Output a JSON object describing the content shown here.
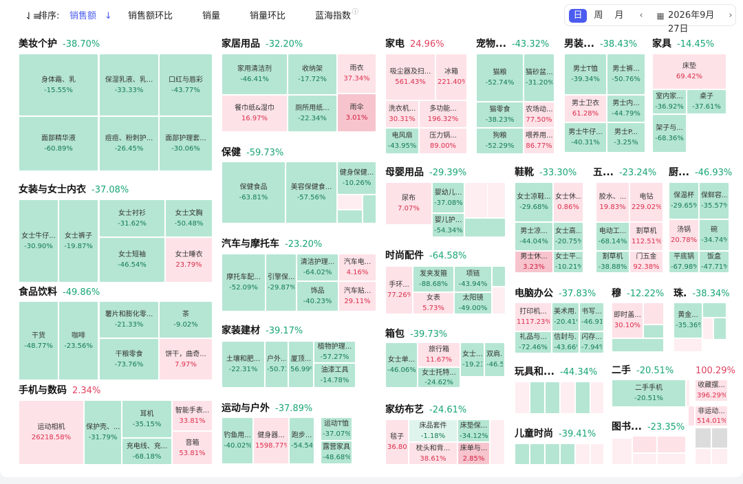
{
  "toolbar": {
    "sort_label": "排序:",
    "metrics": [
      "销售额",
      "销售额环比",
      "销量",
      "销量环比",
      "蓝海指数"
    ]
  },
  "date": {
    "views": [
      "日",
      "周",
      "月"
    ],
    "selected": "2026年9月27日"
  },
  "colors": {
    "accent": "#4b5cf0",
    "green_cell": "#b5e6d3",
    "pink_cell": "#fde2e7",
    "red_text": "#e0405e",
    "green_text": "#17a574"
  },
  "sections": [
    {
      "name": "美妆个护",
      "change": "-38.70%",
      "cells": [
        {
          "name": "身体霜、乳",
          "value": "-15.55%"
        },
        {
          "name": "保湿乳液、乳...",
          "value": "-33.33%"
        },
        {
          "name": "口红与唇彩",
          "value": "-43.77%"
        },
        {
          "name": "面部精华液",
          "value": "-60.89%"
        },
        {
          "name": "痘痘、粉刺护...",
          "value": "-26.45%"
        },
        {
          "name": "面部护理套...",
          "value": "-30.06%"
        }
      ]
    },
    {
      "name": "女装与女士内衣",
      "change": "-37.08%",
      "cells": [
        {
          "name": "女士牛仔...",
          "value": "-30.90%"
        },
        {
          "name": "女士裤子",
          "value": "-19.87%"
        },
        {
          "name": "女士衬衫",
          "value": "-31.62%"
        },
        {
          "name": "女士文胸",
          "value": "-50.48%"
        },
        {
          "name": "女士短袖",
          "value": "-46.54%"
        },
        {
          "name": "女士睡衣",
          "value": "23.79%"
        }
      ]
    },
    {
      "name": "食品饮料",
      "change": "-49.86%",
      "cells": [
        {
          "name": "干货",
          "value": "-48.77%"
        },
        {
          "name": "咖啡",
          "value": "-23.56%"
        },
        {
          "name": "薯片和膨化零...",
          "value": "-21.33%"
        },
        {
          "name": "茶",
          "value": "-9.02%"
        },
        {
          "name": "干粮零食",
          "value": "-73.76%"
        },
        {
          "name": "饼干，曲奇...",
          "value": "7.97%"
        }
      ]
    },
    {
      "name": "手机与数码",
      "change": "2.34%",
      "cells": [
        {
          "name": "运动相机",
          "value": "26218.58%"
        },
        {
          "name": "保护壳、...",
          "value": "-31.79%"
        },
        {
          "name": "耳机",
          "value": "-35.15%"
        },
        {
          "name": "智能手表...",
          "value": "33.81%"
        },
        {
          "name": "充电线、充...",
          "value": "-68.18%"
        },
        {
          "name": "音箱",
          "value": "53.81%"
        }
      ]
    },
    {
      "name": "家居用品",
      "change": "-32.20%",
      "cells": [
        {
          "name": "家用清洁剂",
          "value": "-46.41%"
        },
        {
          "name": "收纳架",
          "value": "-17.72%"
        },
        {
          "name": "雨衣",
          "value": "37.34%"
        },
        {
          "name": "餐巾纸&湿巾",
          "value": "16.97%"
        },
        {
          "name": "厕所用纸...",
          "value": "-22.34%"
        },
        {
          "name": "雨伞",
          "value": "3.01%"
        }
      ]
    },
    {
      "name": "保健",
      "change": "-59.73%",
      "cells": [
        {
          "name": "保健食品",
          "value": "-63.81%"
        },
        {
          "name": "美容保健食...",
          "value": "-57.56%"
        },
        {
          "name": "健身保健...",
          "value": "-10.26%"
        }
      ]
    },
    {
      "name": "汽车与摩托车",
      "change": "-23.20%",
      "cells": [
        {
          "name": "摩托车配...",
          "value": "-52.09%"
        },
        {
          "name": "引擎保...",
          "value": "-29.87%"
        },
        {
          "name": "清洁护理...",
          "value": "-64.02%"
        },
        {
          "name": "汽车电...",
          "value": "4.16%"
        },
        {
          "name": "饰品",
          "value": "-40.23%"
        },
        {
          "name": "汽车贴...",
          "value": "29.11%"
        }
      ]
    },
    {
      "name": "家装建材",
      "change": "-39.17%",
      "cells": [
        {
          "name": "土壤和肥...",
          "value": "-22.31%"
        },
        {
          "name": "户外...",
          "value": "-50.73%"
        },
        {
          "name": "厦顶...",
          "value": "56.99%"
        },
        {
          "name": "植物护理...",
          "value": "-57.27%"
        },
        {
          "name": "油漆工具",
          "value": "-14.78%"
        }
      ]
    },
    {
      "name": "运动与户外",
      "change": "-37.89%",
      "cells": [
        {
          "name": "钓鱼用...",
          "value": "-40.02%"
        },
        {
          "name": "健身器...",
          "value": "1598.77%"
        },
        {
          "name": "跑步...",
          "value": "-54.54%"
        },
        {
          "name": "运动T恤",
          "value": "-37.07%"
        },
        {
          "name": "露营家具",
          "value": "-48.68%"
        }
      ]
    },
    {
      "name": "家电",
      "change": "24.96%",
      "cells": [
        {
          "name": "吸尘器及扫...",
          "value": "561.43%"
        },
        {
          "name": "冰箱",
          "value": "221.40%"
        },
        {
          "name": "洗衣机...",
          "value": "30.31%"
        },
        {
          "name": "多功能...",
          "value": "196.32%"
        },
        {
          "name": "电风扇",
          "value": "-43.95%"
        },
        {
          "name": "压力锅...",
          "value": "89.00%"
        }
      ]
    },
    {
      "name": "宠物...",
      "change": "-43.32%",
      "cells": [
        {
          "name": "猫粮",
          "value": "-52.74%"
        },
        {
          "name": "猫砂盆...",
          "value": "-31.20%"
        },
        {
          "name": "猫零食",
          "value": "-38.23%"
        },
        {
          "name": "农场动...",
          "value": "77.50%"
        },
        {
          "name": "狗粮",
          "value": "-52.29%"
        },
        {
          "name": "喂养用...",
          "value": "86.77%"
        }
      ]
    },
    {
      "name": "男装...",
      "change": "-38.43%",
      "cells": [
        {
          "name": "男士T恤",
          "value": "-39.34%"
        },
        {
          "name": "男士裤...",
          "value": "-50.76%"
        },
        {
          "name": "男士卫衣",
          "value": "61.28%"
        },
        {
          "name": "男士内...",
          "value": "-44.79%"
        },
        {
          "name": "男士牛仔...",
          "value": "-40.31%"
        },
        {
          "name": "男士P...",
          "value": "-3.25%"
        }
      ]
    },
    {
      "name": "家具",
      "change": "-14.45%",
      "cells": [
        {
          "name": "床垫",
          "value": "69.42%"
        },
        {
          "name": "室内家...",
          "value": "-36.92%"
        },
        {
          "name": "桌子",
          "value": "-37.61%"
        },
        {
          "name": "架子与...",
          "value": "-68.36%"
        }
      ]
    },
    {
      "name": "母婴用品",
      "change": "-29.39%",
      "cells": [
        {
          "name": "尿布",
          "value": "7.07%"
        },
        {
          "name": "婴幼儿...",
          "value": "-37.08%"
        },
        {
          "name": "婴儿护...",
          "value": "-54.34%"
        }
      ]
    },
    {
      "name": "时尚配件",
      "change": "-64.58%",
      "cells": [
        {
          "name": "手环...",
          "value": "77.26%"
        },
        {
          "name": "发夹发箍",
          "value": "-88.68%"
        },
        {
          "name": "项链",
          "value": "-43.94%"
        },
        {
          "name": "女表",
          "value": "5.73%"
        },
        {
          "name": "太阳镜",
          "value": "-49.00%"
        }
      ]
    },
    {
      "name": "箱包",
      "change": "-39.73%",
      "cells": [
        {
          "name": "女士单...",
          "value": "-46.06%"
        },
        {
          "name": "旅行箱",
          "value": "11.67%"
        },
        {
          "name": "女士...",
          "value": "-19.23%"
        },
        {
          "name": "双肩...",
          "value": "-46.58%"
        },
        {
          "name": "女士托特...",
          "value": "-24.62%"
        }
      ]
    },
    {
      "name": "家纺布艺",
      "change": "-24.61%",
      "cells": [
        {
          "name": "毯子",
          "value": "36.80%"
        },
        {
          "name": "床品套件",
          "value": "-1.18%"
        },
        {
          "name": "床垫保...",
          "value": "-34.12%"
        },
        {
          "name": "枕头和背...",
          "value": "38.61%"
        },
        {
          "name": "床单与...",
          "value": "2.85%"
        }
      ]
    },
    {
      "name": "鞋靴",
      "change": "-33.30%",
      "cells": [
        {
          "name": "女士凉鞋...",
          "value": "-29.68%"
        },
        {
          "name": "女士休...",
          "value": "0.86%"
        },
        {
          "name": "男士凉...",
          "value": "-44.04%"
        },
        {
          "name": "女士高...",
          "value": "-20.75%"
        },
        {
          "name": "男士休...",
          "value": "3.23%"
        },
        {
          "name": "女士平...",
          "value": "-10.21%"
        }
      ]
    },
    {
      "name": "五...",
      "change": "-23.24%",
      "cells": [
        {
          "name": "胶水、...",
          "value": "19.83%"
        },
        {
          "name": "电钻",
          "value": "229.02%"
        },
        {
          "name": "电动工...",
          "value": "-68.14%"
        },
        {
          "name": "割草机",
          "value": "112.51%"
        },
        {
          "name": "割草机",
          "value": "-38.88%"
        },
        {
          "name": "门五金",
          "value": "92.38%"
        }
      ]
    },
    {
      "name": "厨...",
      "change": "-46.93%",
      "cells": [
        {
          "name": "保温杯",
          "value": "-29.65%"
        },
        {
          "name": "保鲜容...",
          "value": "-35.57%"
        },
        {
          "name": "汤锅",
          "value": "20.78%"
        },
        {
          "name": "碗",
          "value": "-34.74%"
        },
        {
          "name": "平底锅",
          "value": "-67.98%"
        },
        {
          "name": "饭盒",
          "value": "-47.71%"
        }
      ]
    },
    {
      "name": "电脑办公",
      "change": "-37.83%",
      "cells": [
        {
          "name": "打印机...",
          "value": "1117.23%"
        },
        {
          "name": "美术用...",
          "value": "-20.41%"
        },
        {
          "name": "书写...",
          "value": "-46.91%"
        },
        {
          "name": "礼品与...",
          "value": "-72.46%"
        },
        {
          "name": "信封与...",
          "value": "-43.66%"
        },
        {
          "name": "闪存...",
          "value": "-7.94%"
        }
      ]
    },
    {
      "name": "穆",
      "change": "-12.22%",
      "cells": [
        {
          "name": "即时盖...",
          "value": "30.10%"
        }
      ]
    },
    {
      "name": "珠.",
      "change": "-38.34%",
      "cells": [
        {
          "name": "黄金...",
          "value": "-35.36%"
        }
      ]
    },
    {
      "name": "玩具和...",
      "change": "-44.34%",
      "cells": []
    },
    {
      "name": "二手",
      "change": "-20.51%",
      "cells": [
        {
          "name": "二手手机",
          "value": "-20.51%"
        }
      ]
    },
    {
      "name": "",
      "change": "100.29%",
      "cells": [
        {
          "name": "收藏摆...",
          "value": "396.29%"
        },
        {
          "name": "非运动...",
          "value": "514.01%"
        }
      ]
    },
    {
      "name": "儿童时尚",
      "change": "-39.41%",
      "cells": []
    },
    {
      "name": "图书...",
      "change": "-23.35%",
      "cells": []
    }
  ]
}
